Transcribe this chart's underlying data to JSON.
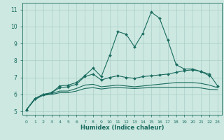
{
  "xlabel": "Humidex (Indice chaleur)",
  "bg_color": "#cce8e0",
  "grid_color": "#aacfc8",
  "line_color": "#1a6b60",
  "xlim": [
    -0.5,
    23.5
  ],
  "ylim": [
    4.8,
    11.4
  ],
  "xticks": [
    0,
    1,
    2,
    3,
    4,
    5,
    6,
    7,
    8,
    9,
    10,
    11,
    12,
    13,
    14,
    15,
    16,
    17,
    18,
    19,
    20,
    21,
    22,
    23
  ],
  "yticks": [
    5,
    6,
    7,
    8,
    9,
    10,
    11
  ],
  "series1_x": [
    0,
    1,
    2,
    3,
    4,
    5,
    6,
    7,
    8,
    9,
    10,
    11,
    12,
    13,
    14,
    15,
    16,
    17,
    18,
    19,
    20,
    21,
    22
  ],
  "series1_y": [
    5.1,
    5.75,
    6.0,
    6.1,
    6.5,
    6.55,
    6.7,
    7.1,
    7.55,
    7.05,
    8.3,
    9.7,
    9.55,
    8.8,
    9.6,
    10.85,
    10.5,
    9.2,
    7.75,
    7.5,
    7.5,
    7.35,
    7.1
  ],
  "series2": [
    5.1,
    5.75,
    6.0,
    6.1,
    6.4,
    6.45,
    6.6,
    7.05,
    7.2,
    6.85,
    7.0,
    7.1,
    7.0,
    6.95,
    7.05,
    7.1,
    7.15,
    7.2,
    7.3,
    7.4,
    7.45,
    7.35,
    7.2,
    6.5
  ],
  "series3": [
    5.1,
    5.75,
    6.0,
    6.05,
    6.2,
    6.2,
    6.35,
    6.55,
    6.6,
    6.45,
    6.5,
    6.55,
    6.5,
    6.45,
    6.5,
    6.55,
    6.6,
    6.65,
    6.7,
    6.7,
    6.7,
    6.65,
    6.55,
    6.4
  ],
  "series4": [
    5.1,
    5.7,
    5.95,
    6.0,
    6.1,
    6.1,
    6.2,
    6.35,
    6.4,
    6.32,
    6.38,
    6.4,
    6.38,
    6.35,
    6.38,
    6.4,
    6.42,
    6.42,
    6.42,
    6.42,
    6.42,
    6.38,
    6.3,
    6.28
  ]
}
